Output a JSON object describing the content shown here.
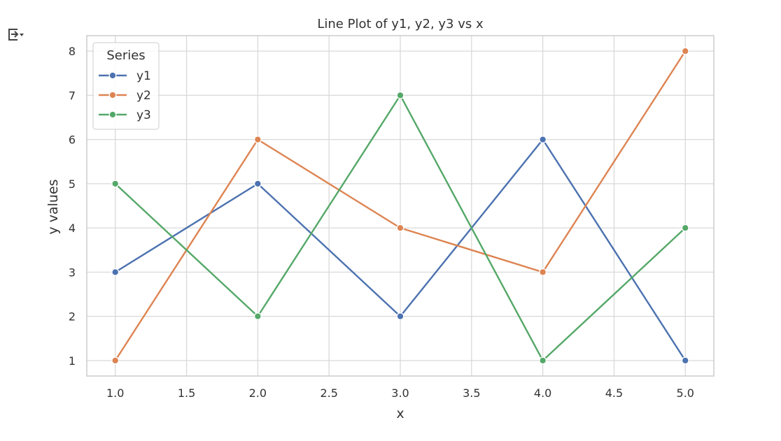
{
  "output_toggle": {
    "icon": "output-toggle-icon"
  },
  "chart_data": {
    "type": "line",
    "title": "Line Plot of y1, y2, y3 vs x",
    "xlabel": "x",
    "ylabel": "y values",
    "x": [
      1.0,
      2.0,
      3.0,
      4.0,
      5.0
    ],
    "xticks": [
      "1.0",
      "1.5",
      "2.0",
      "2.5",
      "3.0",
      "3.5",
      "4.0",
      "4.5",
      "5.0"
    ],
    "xtick_values": [
      1.0,
      1.5,
      2.0,
      2.5,
      3.0,
      3.5,
      4.0,
      4.5,
      5.0
    ],
    "yticks": [
      "1",
      "2",
      "3",
      "4",
      "5",
      "6",
      "7",
      "8"
    ],
    "ytick_values": [
      1,
      2,
      3,
      4,
      5,
      6,
      7,
      8
    ],
    "xlim": [
      0.8,
      5.2
    ],
    "ylim": [
      0.65,
      8.35
    ],
    "grid": true,
    "legend": {
      "title": "Series",
      "placement": "top-left"
    },
    "series": [
      {
        "name": "y1",
        "color": "#4c72b0",
        "values": [
          3,
          5,
          2,
          6,
          1
        ]
      },
      {
        "name": "y2",
        "color": "#dd8452",
        "values": [
          1,
          6,
          4,
          3,
          8
        ]
      },
      {
        "name": "y3",
        "color": "#55a868",
        "values": [
          5,
          2,
          7,
          1,
          4
        ]
      }
    ]
  }
}
